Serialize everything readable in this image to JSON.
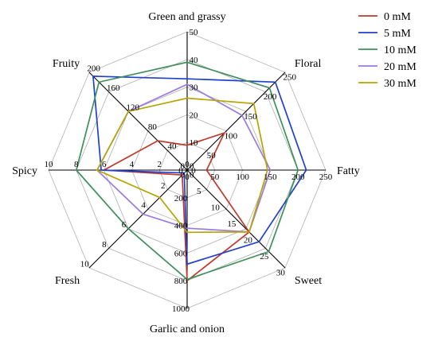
{
  "chart_data": {
    "type": "radar",
    "axes": [
      {
        "name": "Green and grassy",
        "max": 50,
        "ticks": [
          "0",
          "10",
          "20",
          "30",
          "40",
          "50"
        ]
      },
      {
        "name": "Floral",
        "max": 250,
        "ticks": [
          "0",
          "50",
          "100",
          "150",
          "200",
          "250"
        ]
      },
      {
        "name": "Fatty",
        "max": 250,
        "ticks": [
          "0",
          "50",
          "100",
          "150",
          "200",
          "250"
        ]
      },
      {
        "name": "Sweet",
        "max": 30,
        "ticks": [
          "0",
          "5",
          "10",
          "15",
          "20",
          "25",
          "30"
        ]
      },
      {
        "name": "Garlic and onion",
        "max": 1000,
        "ticks": [
          "0",
          "200",
          "400",
          "600",
          "800",
          "1000"
        ]
      },
      {
        "name": "Fresh",
        "max": 10,
        "ticks": [
          "0",
          "2",
          "4",
          "6",
          "8",
          "10"
        ]
      },
      {
        "name": "Spicy",
        "max": 10,
        "ticks": [
          "0",
          "2",
          "4",
          "6",
          "8",
          "10"
        ]
      },
      {
        "name": "Fruity",
        "max": 200,
        "ticks": [
          "0",
          "40",
          "80",
          "120",
          "160",
          "200"
        ]
      }
    ],
    "series": [
      {
        "name": "0 mM",
        "color": "#c0392b",
        "values": [
          9,
          95,
          35,
          19,
          800,
          0.5,
          6,
          60
        ]
      },
      {
        "name": "5 mM",
        "color": "#1f3fd1",
        "values": [
          33,
          225,
          215,
          22,
          680,
          0.3,
          6.2,
          192
        ]
      },
      {
        "name": "10 mM",
        "color": "#3f8f5a",
        "values": [
          39,
          210,
          200,
          25,
          790,
          6,
          8,
          180
        ]
      },
      {
        "name": "20 mM",
        "color": "#9b7be0",
        "values": [
          31,
          140,
          150,
          19,
          420,
          4.5,
          6.5,
          120
        ]
      },
      {
        "name": "30 mM",
        "color": "#b8a400",
        "values": [
          26,
          170,
          145,
          19,
          450,
          2.8,
          6.5,
          120
        ]
      }
    ],
    "legend_position": "top-right",
    "grid": true
  }
}
